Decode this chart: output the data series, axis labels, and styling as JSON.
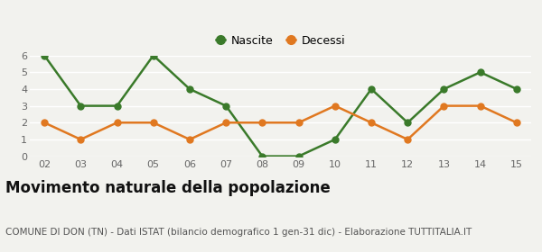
{
  "years": [
    "02",
    "03",
    "04",
    "05",
    "06",
    "07",
    "08",
    "09",
    "10",
    "11",
    "12",
    "13",
    "14",
    "15"
  ],
  "nascite": [
    6,
    3,
    3,
    6,
    4,
    3,
    0,
    0,
    1,
    4,
    2,
    4,
    5,
    4
  ],
  "decessi": [
    2,
    1,
    2,
    2,
    1,
    2,
    2,
    2,
    3,
    2,
    1,
    3,
    3,
    2
  ],
  "nascite_color": "#3a7a2a",
  "decessi_color": "#e07820",
  "title": "Movimento naturale della popolazione",
  "subtitle": "COMUNE DI DON (TN) - Dati ISTAT (bilancio demografico 1 gen-31 dic) - Elaborazione TUTTITALIA.IT",
  "ylim": [
    0,
    6
  ],
  "yticks": [
    0,
    1,
    2,
    3,
    4,
    5,
    6
  ],
  "background_color": "#f2f2ee",
  "grid_color": "#ffffff",
  "legend_nascite": "Nascite",
  "legend_decessi": "Decessi",
  "title_fontsize": 12,
  "subtitle_fontsize": 7.5,
  "marker_size": 5,
  "line_width": 1.8
}
